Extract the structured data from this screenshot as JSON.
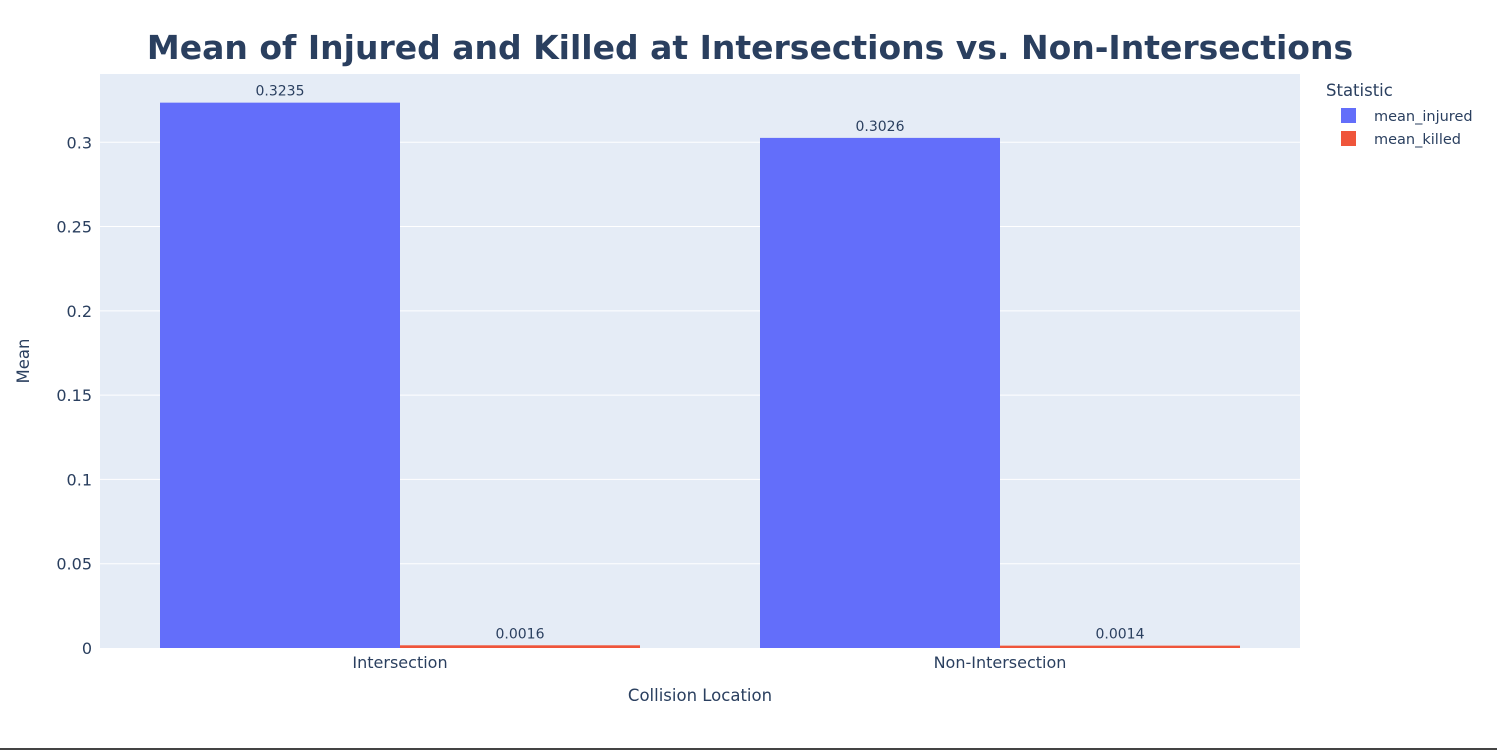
{
  "chart_data": {
    "type": "bar",
    "title": "Mean of Injured and Killed at Intersections vs. Non-Intersections",
    "xlabel": "Collision Location",
    "ylabel": "Mean",
    "categories": [
      "Intersection",
      "Non-Intersection"
    ],
    "series": [
      {
        "name": "mean_injured",
        "values": [
          0.3235,
          0.3026
        ],
        "labels": [
          "0.3235",
          "0.3026"
        ],
        "color": "#636efa"
      },
      {
        "name": "mean_killed",
        "values": [
          0.0016,
          0.0014
        ],
        "labels": [
          "0.0016",
          "0.0014"
        ],
        "color": "#ef553b"
      }
    ],
    "ylim": [
      0,
      0.3405
    ],
    "yticks": [
      0,
      0.05,
      0.1,
      0.15,
      0.2,
      0.25,
      0.3
    ],
    "ytick_labels": [
      "0",
      "0.05",
      "0.1",
      "0.15",
      "0.2",
      "0.25",
      "0.3"
    ],
    "legend_title": "Statistic",
    "legend_position": "top-right",
    "grid": true,
    "plot_background": "#e5ecf6",
    "text_color": "#2a3f5f"
  }
}
